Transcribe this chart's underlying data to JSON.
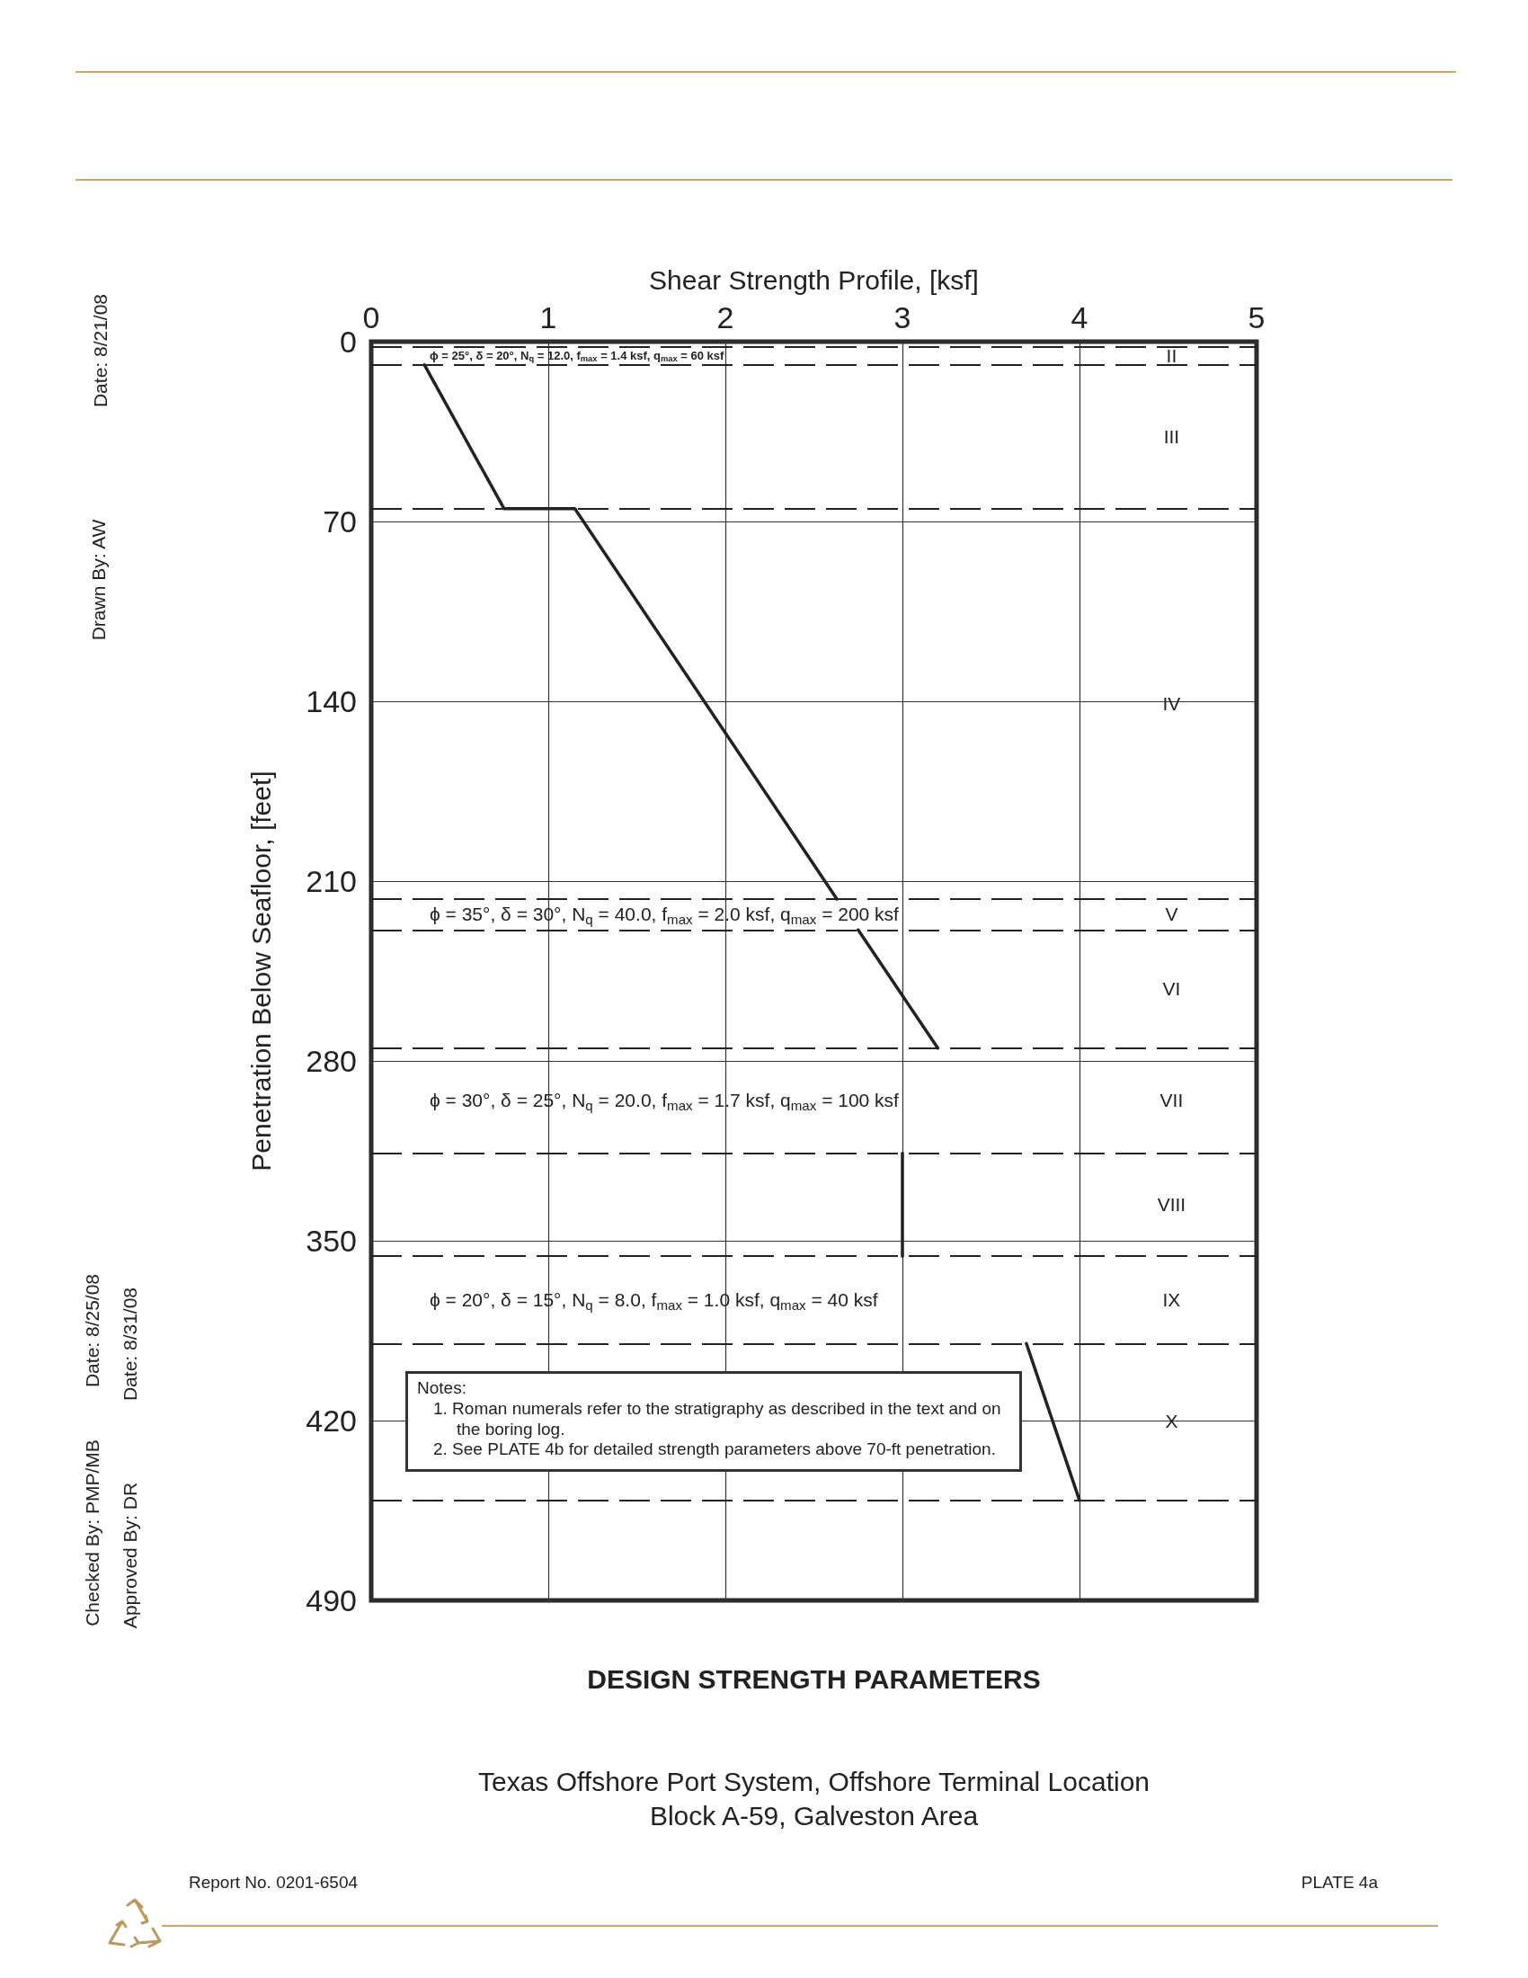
{
  "chart_data": {
    "type": "line",
    "title": "DESIGN STRENGTH PARAMETERS",
    "subtitle": "Texas Offshore Port System, Offshore Terminal Location\nBlock A-59, Galveston Area",
    "xlabel": "Shear Strength Profile, [ksf]",
    "ylabel": "Penetration Below Seafloor, [feet]",
    "xlim": [
      0,
      5
    ],
    "xticks": [
      0,
      1,
      2,
      3,
      4,
      5
    ],
    "ylim": [
      490,
      0
    ],
    "yticks": [
      0,
      70,
      140,
      210,
      280,
      350,
      420,
      490
    ],
    "grid": true,
    "marker": "none",
    "line_style": "solid",
    "series": [
      {
        "color": "#222222",
        "x": [
          0.3,
          0.75,
          1.15,
          2.63
        ],
        "values": [
          9,
          65,
          65,
          217
        ]
      },
      {
        "color": "#222222",
        "x": [
          2.75,
          3.2
        ],
        "values": [
          229,
          275
        ]
      },
      {
        "color": "#222222",
        "x": [
          3,
          3
        ],
        "values": [
          316,
          356
        ]
      },
      {
        "color": "#222222",
        "x": [
          3.7,
          4
        ],
        "values": [
          390,
          451
        ]
      }
    ],
    "ref_lines": [
      {
        "axis": "y",
        "value": 2,
        "color": "#222222",
        "line_style": "dashed"
      },
      {
        "axis": "y",
        "value": 9,
        "color": "#222222",
        "line_style": "dashed"
      },
      {
        "axis": "y",
        "value": 65,
        "color": "#222222",
        "line_style": "dashed"
      },
      {
        "axis": "y",
        "value": 217,
        "color": "#222222",
        "line_style": "dashed"
      },
      {
        "axis": "y",
        "value": 229,
        "color": "#222222",
        "line_style": "dashed"
      },
      {
        "axis": "y",
        "value": 275,
        "color": "#222222",
        "line_style": "dashed"
      },
      {
        "axis": "y",
        "value": 316,
        "color": "#222222",
        "line_style": "dashed"
      },
      {
        "axis": "y",
        "value": 356,
        "color": "#222222",
        "line_style": "dashed"
      },
      {
        "axis": "y",
        "value": 390,
        "color": "#222222",
        "line_style": "dashed"
      },
      {
        "axis": "y",
        "value": 451,
        "color": "#222222",
        "line_style": "dashed"
      }
    ],
    "annotations": [
      "ϕ = 25°, δ = 20°, N$_{q}$ = 12.0, f$_{max}$ = 1.4 ksf, q$_{max}$ = 60 ksf",
      "ϕ = 35°, δ = 30°, N$_{q}$ = 40.0, f$_{max}$ = 2.0 ksf, q$_{max}$ = 200 ksf",
      "ϕ = 30°, δ = 25°, N$_{q}$ = 20.0, f$_{max}$ = 1.7 ksf, q$_{max}$ = 100 ksf",
      "ϕ = 20°, δ = 15°, N$_{q}$ = 8.0, f$_{max}$ = 1.0 ksf, q$_{max}$ = 40 ksf",
      "II",
      "III",
      "IV",
      "V",
      "VI",
      "VII",
      "VIII",
      "IX",
      "X",
      "Notes:\n1. Roman numerals refer to the stratigraphy as described in the text and on the boring log.\n2. See PLATE 4b for detailed strength parameters above 70-ft penetration.",
      "Report No. 0201-6504",
      "PLATE 4a",
      "Drawn By: AW",
      "Date: 8/21/08",
      "Checked By: PMP/MB",
      "Date: 8/25/08",
      "Approved By: DR",
      "Date: 8/31/08"
    ]
  }
}
